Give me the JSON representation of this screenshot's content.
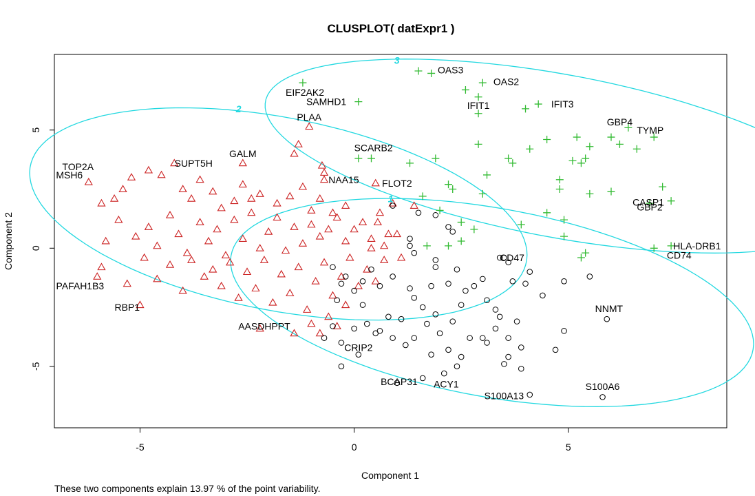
{
  "chart_data": {
    "type": "scatter",
    "title": "CLUSPLOT( datExpr1 )",
    "xlabel": "Component 1",
    "ylabel": "Component 2",
    "xlim": [
      -7.0,
      8.7
    ],
    "ylim": [
      -7.6,
      8.2
    ],
    "xticks": [
      -5,
      0,
      5
    ],
    "yticks": [
      -5,
      0,
      5
    ],
    "footnote": "These two components explain 13.97 % of the point variability.",
    "clusters": [
      {
        "label": "1",
        "marker": "circle",
        "color": "#000000",
        "ellipse_color": "#22d8e0",
        "ellipse": {
          "cx": 3.22,
          "cy": -2.3,
          "a": 6.5,
          "b": 3.8,
          "angle_deg": -25
        },
        "label_pos": [
          0.85,
          2.1
        ]
      },
      {
        "label": "2",
        "marker": "triangle",
        "color": "#cc2222",
        "ellipse_color": "#22d8e0",
        "ellipse": {
          "cx": -1.77,
          "cy": 1.45,
          "a": 6.25,
          "b": 3.85,
          "angle_deg": -28
        },
        "label_pos": [
          -2.7,
          5.9
        ]
      },
      {
        "label": "3",
        "marker": "plus",
        "color": "#33bb33",
        "ellipse_color": "#22d8e0",
        "ellipse": {
          "cx": 4.8,
          "cy": 3.9,
          "a": 7.3,
          "b": 3.3,
          "angle_deg": -22
        },
        "label_pos": [
          1.0,
          7.95
        ]
      }
    ],
    "series": [
      {
        "cluster": "2",
        "points": [
          [
            -6.2,
            2.8
          ],
          [
            -5.9,
            1.9
          ],
          [
            -5.6,
            2.1
          ],
          [
            -5.4,
            2.5
          ],
          [
            -5.2,
            3.0
          ],
          [
            -4.8,
            3.3
          ],
          [
            -4.5,
            3.1
          ],
          [
            -4.2,
            3.6
          ],
          [
            -4.0,
            2.5
          ],
          [
            -3.8,
            2.1
          ],
          [
            -3.6,
            2.9
          ],
          [
            -3.3,
            2.4
          ],
          [
            -3.1,
            1.7
          ],
          [
            -2.8,
            2.0
          ],
          [
            -2.6,
            2.7
          ],
          [
            -2.4,
            2.1
          ],
          [
            -2.2,
            2.3
          ],
          [
            -1.8,
            1.9
          ],
          [
            -1.5,
            2.2
          ],
          [
            -1.2,
            2.6
          ],
          [
            -1.0,
            1.6
          ],
          [
            -0.8,
            2.1
          ],
          [
            -0.5,
            1.5
          ],
          [
            -0.2,
            1.8
          ],
          [
            -5.8,
            0.3
          ],
          [
            -5.5,
            1.2
          ],
          [
            -5.1,
            0.5
          ],
          [
            -4.8,
            0.9
          ],
          [
            -4.6,
            0.1
          ],
          [
            -4.3,
            1.4
          ],
          [
            -4.1,
            0.6
          ],
          [
            -3.9,
            -0.2
          ],
          [
            -3.6,
            1.1
          ],
          [
            -3.4,
            0.3
          ],
          [
            -3.2,
            0.8
          ],
          [
            -3.0,
            -0.3
          ],
          [
            -2.8,
            1.2
          ],
          [
            -2.6,
            0.4
          ],
          [
            -2.4,
            1.5
          ],
          [
            -2.2,
            0.0
          ],
          [
            -2.0,
            0.7
          ],
          [
            -1.8,
            1.3
          ],
          [
            -1.6,
            -0.1
          ],
          [
            -1.4,
            0.9
          ],
          [
            -1.2,
            0.2
          ],
          [
            -1.0,
            1.0
          ],
          [
            -0.8,
            0.5
          ],
          [
            -0.6,
            0.8
          ],
          [
            -0.4,
            1.3
          ],
          [
            -0.2,
            0.3
          ],
          [
            0.0,
            0.8
          ],
          [
            0.2,
            1.1
          ],
          [
            0.4,
            0.4
          ],
          [
            0.6,
            1.5
          ],
          [
            0.7,
            0.1
          ],
          [
            0.9,
            1.9
          ],
          [
            1.0,
            0.6
          ],
          [
            1.1,
            -0.4
          ],
          [
            -5.9,
            -0.8
          ],
          [
            -5.3,
            -1.5
          ],
          [
            -4.9,
            -0.4
          ],
          [
            -4.6,
            -1.3
          ],
          [
            -4.3,
            -0.7
          ],
          [
            -4.0,
            -1.8
          ],
          [
            -3.8,
            -0.5
          ],
          [
            -3.5,
            -1.2
          ],
          [
            -3.3,
            -0.9
          ],
          [
            -3.1,
            -1.6
          ],
          [
            -2.9,
            -0.6
          ],
          [
            -2.7,
            -2.1
          ],
          [
            -2.5,
            -1.0
          ],
          [
            -2.3,
            -1.7
          ],
          [
            -2.1,
            -0.5
          ],
          [
            -1.9,
            -2.3
          ],
          [
            -1.7,
            -1.1
          ],
          [
            -1.5,
            -1.9
          ],
          [
            -1.3,
            -0.8
          ],
          [
            -1.1,
            -2.6
          ],
          [
            -0.9,
            -1.4
          ],
          [
            -0.7,
            -0.6
          ],
          [
            -0.5,
            -2.0
          ],
          [
            -0.3,
            -1.2
          ],
          [
            -0.1,
            -0.4
          ],
          [
            0.1,
            -1.6
          ],
          [
            0.3,
            -0.9
          ],
          [
            0.5,
            -1.4
          ],
          [
            0.7,
            -0.5
          ],
          [
            -6.0,
            -1.2
          ],
          [
            -5.0,
            -2.4
          ],
          [
            -2.2,
            -3.4
          ],
          [
            -1.4,
            -3.6
          ],
          [
            -1.0,
            -3.2
          ],
          [
            -0.8,
            -3.6
          ],
          [
            -0.6,
            -2.9
          ],
          [
            -0.4,
            -3.3
          ],
          [
            -0.2,
            -2.4
          ],
          [
            -2.6,
            3.6
          ],
          [
            -1.3,
            4.4
          ],
          [
            -1.4,
            4.0
          ],
          [
            -1.05,
            5.15
          ],
          [
            -0.75,
            3.5
          ],
          [
            -0.7,
            3.2
          ],
          [
            -0.7,
            2.9
          ],
          [
            0.5,
            2.75
          ],
          [
            1.4,
            1.8
          ],
          [
            0.55,
            1.1
          ],
          [
            0.8,
            0.6
          ],
          [
            0.4,
            0.0
          ]
        ]
      },
      {
        "cluster": "1",
        "points": [
          [
            0.9,
            1.8
          ],
          [
            1.5,
            1.5
          ],
          [
            1.9,
            1.4
          ],
          [
            2.2,
            0.9
          ],
          [
            2.3,
            0.7
          ],
          [
            1.3,
            0.4
          ],
          [
            1.3,
            0.1
          ],
          [
            1.4,
            -0.2
          ],
          [
            1.9,
            -0.5
          ],
          [
            -0.5,
            -0.8
          ],
          [
            -0.3,
            -1.5
          ],
          [
            0.0,
            -1.8
          ],
          [
            0.2,
            -1.4
          ],
          [
            -0.4,
            -2.2
          ],
          [
            0.6,
            -1.6
          ],
          [
            0.9,
            -1.2
          ],
          [
            1.3,
            -1.7
          ],
          [
            1.4,
            -2.1
          ],
          [
            1.6,
            -2.5
          ],
          [
            1.8,
            -1.6
          ],
          [
            1.9,
            -2.8
          ],
          [
            2.2,
            -1.5
          ],
          [
            2.5,
            -2.4
          ],
          [
            -0.7,
            -3.8
          ],
          [
            -0.5,
            -3.3
          ],
          [
            -0.3,
            -4.0
          ],
          [
            0.0,
            -3.4
          ],
          [
            0.1,
            -4.5
          ],
          [
            0.3,
            -3.2
          ],
          [
            0.6,
            -3.5
          ],
          [
            0.9,
            -3.8
          ],
          [
            1.1,
            -3.0
          ],
          [
            1.2,
            -4.1
          ],
          [
            1.4,
            -3.8
          ],
          [
            1.6,
            -5.5
          ],
          [
            1.8,
            -4.5
          ],
          [
            2.0,
            -3.6
          ],
          [
            2.2,
            -4.3
          ],
          [
            2.3,
            -3.1
          ],
          [
            2.5,
            -4.6
          ],
          [
            2.7,
            -3.8
          ],
          [
            -0.3,
            -5.0
          ],
          [
            1.0,
            -5.7
          ],
          [
            2.1,
            -5.3
          ],
          [
            2.4,
            -5.0
          ],
          [
            0.8,
            -2.9
          ],
          [
            0.2,
            -2.4
          ],
          [
            0.5,
            -3.6
          ],
          [
            2.4,
            -0.9
          ],
          [
            2.8,
            -1.6
          ],
          [
            3.0,
            -1.3
          ],
          [
            3.1,
            -2.2
          ],
          [
            3.3,
            -2.6
          ],
          [
            3.4,
            -2.9
          ],
          [
            3.0,
            -3.8
          ],
          [
            3.3,
            -3.4
          ],
          [
            3.6,
            -3.8
          ],
          [
            3.6,
            -4.6
          ],
          [
            3.8,
            -3.1
          ],
          [
            3.9,
            -4.2
          ],
          [
            3.9,
            -5.1
          ],
          [
            3.7,
            -1.4
          ],
          [
            4.1,
            -1.0
          ],
          [
            4.4,
            -2.0
          ],
          [
            4.0,
            -1.5
          ],
          [
            4.9,
            -1.4
          ],
          [
            4.9,
            -3.5
          ],
          [
            4.7,
            -4.3
          ],
          [
            3.5,
            -0.4
          ],
          [
            3.6,
            -0.6
          ],
          [
            3.1,
            -4.0
          ],
          [
            3.5,
            -4.9
          ],
          [
            5.5,
            -1.2
          ],
          [
            2.6,
            -1.8
          ],
          [
            1.7,
            -3.2
          ],
          [
            1.9,
            -0.8
          ],
          [
            -0.2,
            -1.2
          ],
          [
            0.4,
            -0.9
          ],
          [
            3.4,
            -0.4
          ],
          [
            5.9,
            -3.0
          ],
          [
            4.1,
            -6.2
          ],
          [
            5.8,
            -6.3
          ]
        ]
      },
      {
        "cluster": "3",
        "points": [
          [
            -1.2,
            7.0
          ],
          [
            1.5,
            7.5
          ],
          [
            1.8,
            7.4
          ],
          [
            2.6,
            6.7
          ],
          [
            3.0,
            7.0
          ],
          [
            2.9,
            6.4
          ],
          [
            4.0,
            5.9
          ],
          [
            4.3,
            6.1
          ],
          [
            2.9,
            5.7
          ],
          [
            0.1,
            6.2
          ],
          [
            2.9,
            4.4
          ],
          [
            3.6,
            3.8
          ],
          [
            3.7,
            3.6
          ],
          [
            4.1,
            4.2
          ],
          [
            4.5,
            4.6
          ],
          [
            5.2,
            4.7
          ],
          [
            5.5,
            4.3
          ],
          [
            5.4,
            3.8
          ],
          [
            6.0,
            4.7
          ],
          [
            6.2,
            4.4
          ],
          [
            6.4,
            5.1
          ],
          [
            6.6,
            4.2
          ],
          [
            7.0,
            4.7
          ],
          [
            5.3,
            3.6
          ],
          [
            5.1,
            3.7
          ],
          [
            0.1,
            3.8
          ],
          [
            0.4,
            3.8
          ],
          [
            1.3,
            3.6
          ],
          [
            1.9,
            3.8
          ],
          [
            2.2,
            2.7
          ],
          [
            2.3,
            2.5
          ],
          [
            3.0,
            2.3
          ],
          [
            3.1,
            3.1
          ],
          [
            4.8,
            2.9
          ],
          [
            4.8,
            2.5
          ],
          [
            5.5,
            2.3
          ],
          [
            6.0,
            2.4
          ],
          [
            7.2,
            2.6
          ],
          [
            7.4,
            2.0
          ],
          [
            6.9,
            1.9
          ],
          [
            1.6,
            2.2
          ],
          [
            2.0,
            1.6
          ],
          [
            2.5,
            1.1
          ],
          [
            2.8,
            0.8
          ],
          [
            3.9,
            1.0
          ],
          [
            4.5,
            1.5
          ],
          [
            4.9,
            1.2
          ],
          [
            4.9,
            0.5
          ],
          [
            5.4,
            -0.2
          ],
          [
            5.3,
            -0.4
          ],
          [
            7.0,
            0.0
          ],
          [
            7.4,
            0.1
          ],
          [
            1.7,
            0.1
          ],
          [
            2.2,
            0.1
          ],
          [
            2.5,
            0.3
          ]
        ]
      }
    ],
    "labels": [
      {
        "text": "TOP2A",
        "x": -6.45,
        "y": 3.45,
        "anchor": "middle"
      },
      {
        "text": "MSH6",
        "x": -6.65,
        "y": 3.1,
        "anchor": "middle"
      },
      {
        "text": "SUPT5H",
        "x": -3.75,
        "y": 3.6,
        "anchor": "middle"
      },
      {
        "text": "GALM",
        "x": -2.6,
        "y": 4.0,
        "anchor": "middle"
      },
      {
        "text": "PLAA",
        "x": -1.05,
        "y": 5.55,
        "anchor": "middle"
      },
      {
        "text": "EIF2AK2",
        "x": -1.15,
        "y": 6.6,
        "anchor": "middle"
      },
      {
        "text": "SAMHD1",
        "x": -0.65,
        "y": 6.2,
        "anchor": "middle"
      },
      {
        "text": "NAA15",
        "x": -0.6,
        "y": 2.9,
        "anchor": "start"
      },
      {
        "text": "FLOT2",
        "x": 0.65,
        "y": 2.75,
        "anchor": "start"
      },
      {
        "text": "SCARB2",
        "x": 0.0,
        "y": 4.25,
        "anchor": "start"
      },
      {
        "text": "OAS3",
        "x": 1.95,
        "y": 7.55,
        "anchor": "start"
      },
      {
        "text": "OAS2",
        "x": 3.25,
        "y": 7.05,
        "anchor": "start"
      },
      {
        "text": "IFIT1",
        "x": 2.9,
        "y": 6.05,
        "anchor": "middle"
      },
      {
        "text": "IFIT3",
        "x": 4.6,
        "y": 6.1,
        "anchor": "start"
      },
      {
        "text": "GBP4",
        "x": 5.9,
        "y": 5.35,
        "anchor": "start"
      },
      {
        "text": "TYMP",
        "x": 6.6,
        "y": 5.0,
        "anchor": "start"
      },
      {
        "text": "CASP1",
        "x": 6.5,
        "y": 1.95,
        "anchor": "start"
      },
      {
        "text": "GBP2",
        "x": 6.6,
        "y": 1.75,
        "anchor": "start"
      },
      {
        "text": "HLA-DRB1",
        "x": 7.45,
        "y": 0.1,
        "anchor": "start"
      },
      {
        "text": "CD74",
        "x": 7.3,
        "y": -0.3,
        "anchor": "start"
      },
      {
        "text": "CD47",
        "x": 3.4,
        "y": -0.4,
        "anchor": "start"
      },
      {
        "text": "PAFAH1B3",
        "x": -6.4,
        "y": -1.6,
        "anchor": "middle"
      },
      {
        "text": "RBP1",
        "x": -5.3,
        "y": -2.5,
        "anchor": "middle"
      },
      {
        "text": "AASDHPPT",
        "x": -2.1,
        "y": -3.3,
        "anchor": "middle"
      },
      {
        "text": "CRIP2",
        "x": 0.1,
        "y": -4.2,
        "anchor": "middle"
      },
      {
        "text": "BCAP31",
        "x": 1.05,
        "y": -5.65,
        "anchor": "middle"
      },
      {
        "text": "ACY1",
        "x": 2.15,
        "y": -5.75,
        "anchor": "middle"
      },
      {
        "text": "S100A13",
        "x": 3.5,
        "y": -6.25,
        "anchor": "middle"
      },
      {
        "text": "NNMT",
        "x": 5.95,
        "y": -2.55,
        "anchor": "middle"
      },
      {
        "text": "S100A6",
        "x": 5.8,
        "y": -5.85,
        "anchor": "middle"
      }
    ]
  }
}
